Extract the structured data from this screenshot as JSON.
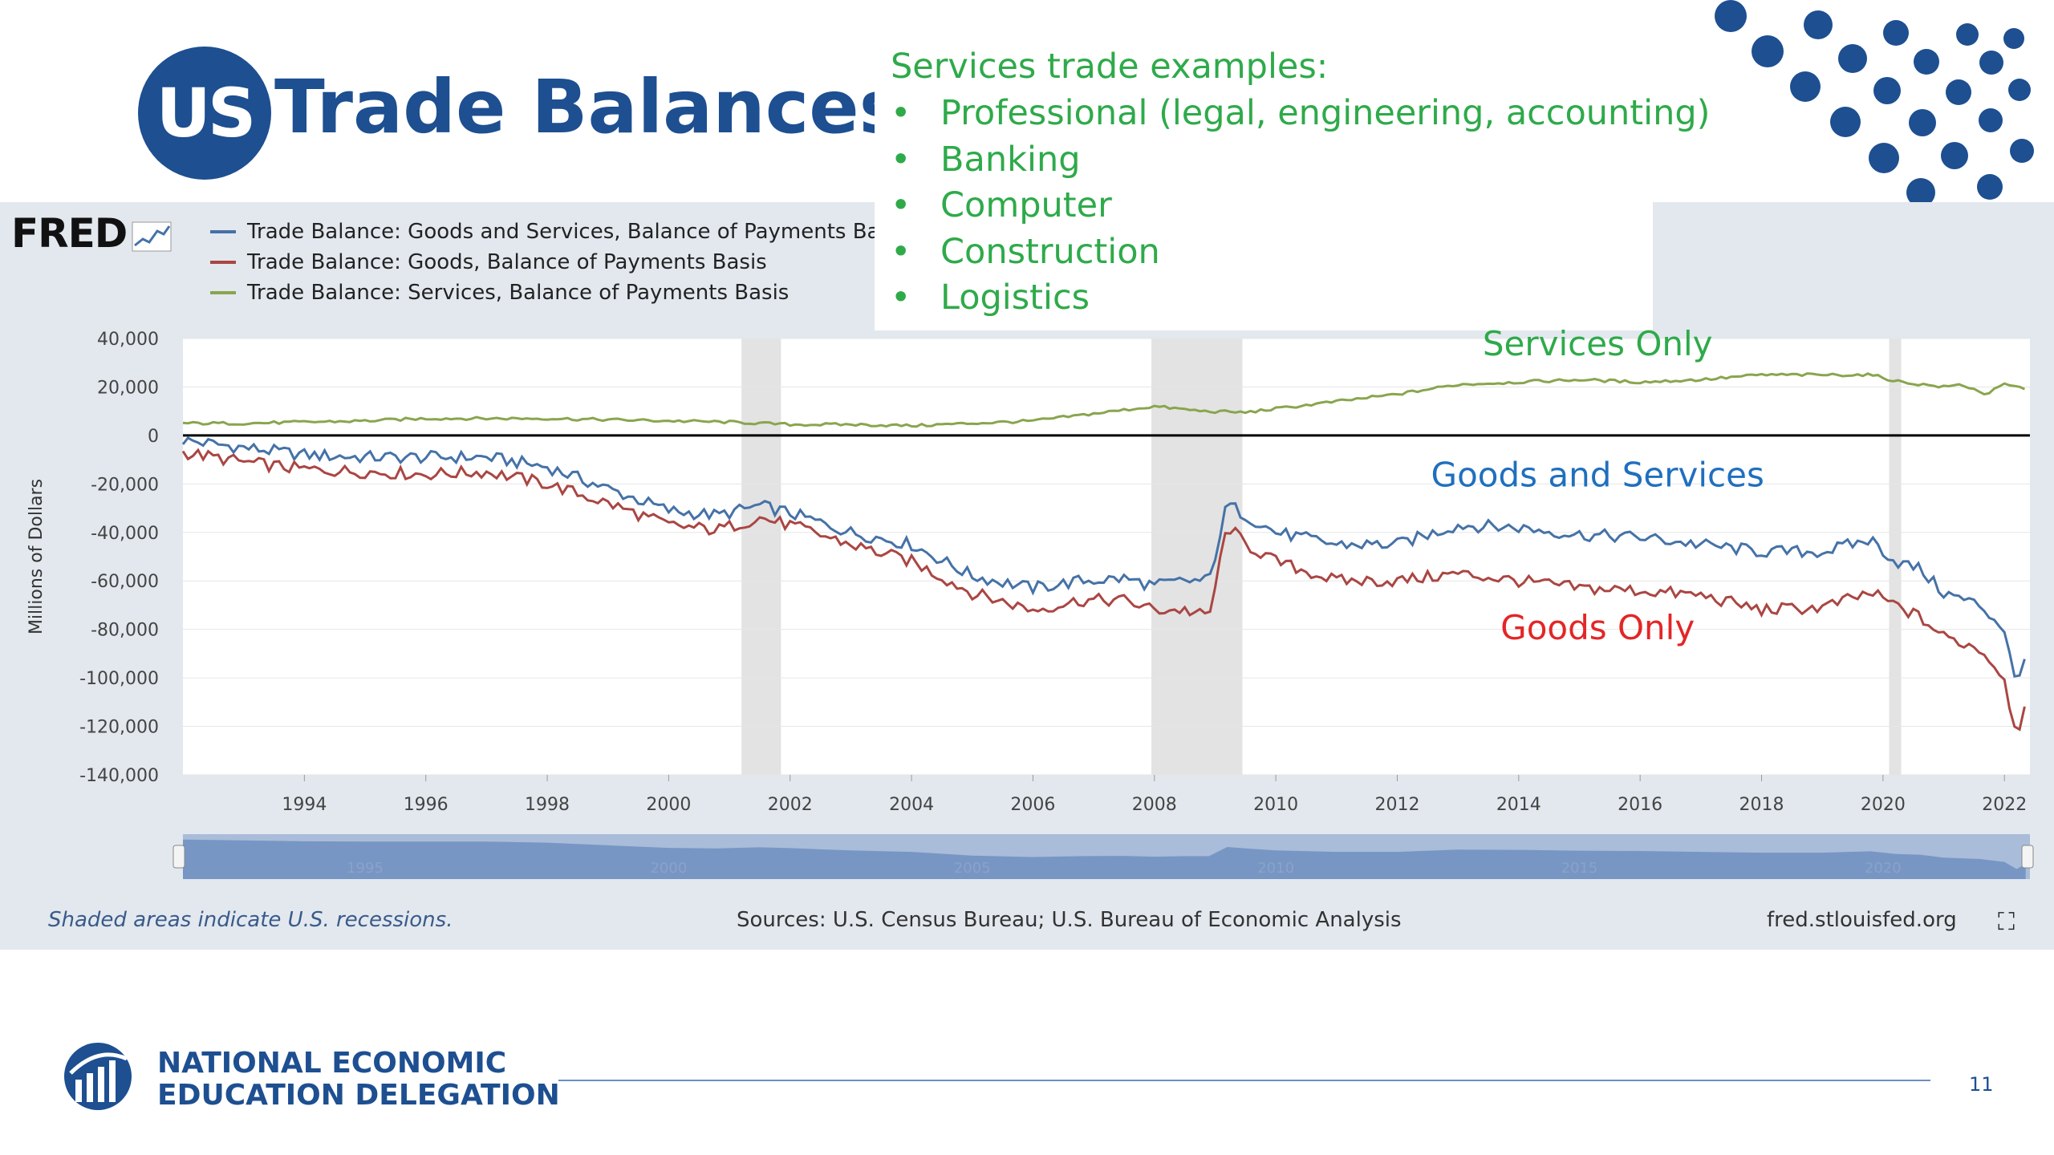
{
  "slide": {
    "logo_text": "US",
    "title": "Trade Balances",
    "page_number": "11",
    "brand_color": "#1d4f91"
  },
  "callout": {
    "heading": "Services trade examples:",
    "bullet": "•",
    "items": [
      "Professional (legal, engineering, accounting)",
      "Banking",
      "Computer",
      "Construction",
      "Logistics"
    ],
    "color": "#2eaa4a"
  },
  "fred": {
    "logo": "FRED",
    "recession_note": "Shaded areas indicate U.S. recessions.",
    "sources": "Sources: U.S. Census Bureau; U.S. Bureau of Economic Analysis",
    "site": "fred.stlouisfed.org",
    "expand_icon": "expand-icon",
    "navigator_labels": [
      "1995",
      "2000",
      "2005",
      "2010",
      "2015",
      "2020"
    ]
  },
  "chart_data": {
    "type": "line",
    "ylabel": "Millions of Dollars",
    "ylim": [
      -140000,
      40000
    ],
    "xlim": [
      1992.0,
      2022.42
    ],
    "x_ticks": [
      "1994",
      "1996",
      "1998",
      "2000",
      "2002",
      "2004",
      "2006",
      "2008",
      "2010",
      "2012",
      "2014",
      "2016",
      "2018",
      "2020",
      "2022"
    ],
    "y_ticks": [
      "40,000",
      "20,000",
      "0",
      "-20,000",
      "-40,000",
      "-60,000",
      "-80,000",
      "-100,000",
      "-120,000",
      "-140,000"
    ],
    "grid": true,
    "legend_placement": "top-left",
    "recessions": [
      [
        2001.2,
        2001.85
      ],
      [
        2007.95,
        2009.45
      ],
      [
        2020.1,
        2020.3
      ]
    ],
    "series": [
      {
        "name": "Trade Balance: Goods and Services, Balance of Payments Basis",
        "color": "#4572a7",
        "x": [
          1992.0,
          1993.0,
          1994.0,
          1995.0,
          1996.0,
          1997.0,
          1998.0,
          1999.0,
          2000.0,
          2000.8,
          2001.5,
          2002.0,
          2003.0,
          2004.0,
          2005.0,
          2006.0,
          2006.8,
          2007.5,
          2008.0,
          2008.5,
          2008.9,
          2009.2,
          2009.5,
          2010.0,
          2011.0,
          2012.0,
          2013.0,
          2014.0,
          2015.0,
          2016.0,
          2017.0,
          2018.0,
          2019.0,
          2019.8,
          2020.2,
          2020.6,
          2021.0,
          2021.6,
          2022.0,
          2022.2,
          2022.35
        ],
        "values": [
          -2000,
          -5000,
          -8000,
          -9000,
          -9000,
          -9000,
          -13000,
          -22000,
          -31000,
          -33000,
          -29000,
          -32000,
          -40000,
          -45000,
          -58000,
          -63000,
          -60000,
          -59000,
          -62000,
          -60000,
          -60000,
          -28000,
          -33000,
          -40000,
          -45000,
          -45000,
          -37000,
          -38000,
          -41000,
          -42000,
          -45000,
          -48000,
          -48000,
          -43000,
          -52000,
          -55000,
          -65000,
          -70000,
          -80000,
          -105000,
          -88000
        ]
      },
      {
        "name": "Trade Balance: Goods, Balance of Payments Basis",
        "color": "#aa4643",
        "x": [
          1992.0,
          1993.0,
          1994.0,
          1995.0,
          1996.0,
          1997.0,
          1998.0,
          1999.0,
          2000.0,
          2000.8,
          2001.5,
          2002.0,
          2003.0,
          2004.0,
          2005.0,
          2006.0,
          2006.8,
          2007.5,
          2008.0,
          2008.5,
          2008.9,
          2009.2,
          2009.5,
          2010.0,
          2011.0,
          2012.0,
          2013.0,
          2014.0,
          2015.0,
          2016.0,
          2017.0,
          2018.0,
          2019.0,
          2019.8,
          2020.2,
          2020.6,
          2021.0,
          2021.6,
          2022.0,
          2022.2,
          2022.35
        ],
        "values": [
          -7000,
          -11000,
          -14000,
          -15000,
          -16000,
          -15000,
          -20000,
          -28000,
          -37000,
          -39000,
          -34000,
          -37000,
          -45000,
          -52000,
          -65000,
          -72000,
          -68000,
          -68000,
          -72000,
          -72000,
          -75000,
          -37000,
          -45000,
          -52000,
          -60000,
          -60000,
          -57000,
          -60000,
          -63000,
          -64000,
          -66000,
          -72000,
          -71000,
          -65000,
          -70000,
          -75000,
          -83000,
          -88000,
          -100000,
          -125000,
          -108000
        ]
      },
      {
        "name": "Trade Balance: Services, Balance of Payments Basis",
        "color": "#89a54e",
        "x": [
          1992.0,
          1993.0,
          1994.0,
          1995.0,
          1996.0,
          1997.0,
          1998.0,
          1999.0,
          2000.0,
          2001.0,
          2002.0,
          2003.0,
          2004.0,
          2005.0,
          2006.0,
          2007.0,
          2008.0,
          2008.8,
          2009.5,
          2010.0,
          2011.0,
          2012.0,
          2013.0,
          2014.0,
          2015.0,
          2016.0,
          2017.0,
          2018.0,
          2019.0,
          2019.8,
          2020.3,
          2021.0,
          2021.3,
          2021.7,
          2022.0,
          2022.3
        ],
        "values": [
          5000,
          5000,
          5500,
          6000,
          7000,
          7000,
          7000,
          6500,
          6000,
          5500,
          4500,
          4500,
          4000,
          5000,
          6000,
          9000,
          12000,
          10000,
          9500,
          11000,
          14000,
          17000,
          21000,
          22000,
          23000,
          22000,
          23000,
          25000,
          25000,
          25000,
          22000,
          20000,
          21000,
          17000,
          21000,
          19500
        ]
      }
    ],
    "annotations": [
      {
        "text": "Services Only",
        "x": 2015.3,
        "y": 33000,
        "color": "#2eaa4a"
      },
      {
        "text": "Goods and Services",
        "x": 2015.3,
        "y": -21000,
        "color": "#1f6fbf"
      },
      {
        "text": "Goods Only",
        "x": 2015.3,
        "y": -84000,
        "color": "#e32626"
      }
    ]
  },
  "nee": {
    "line1": "NATIONAL ECONOMIC",
    "line2": "EDUCATION DELEGATION"
  }
}
